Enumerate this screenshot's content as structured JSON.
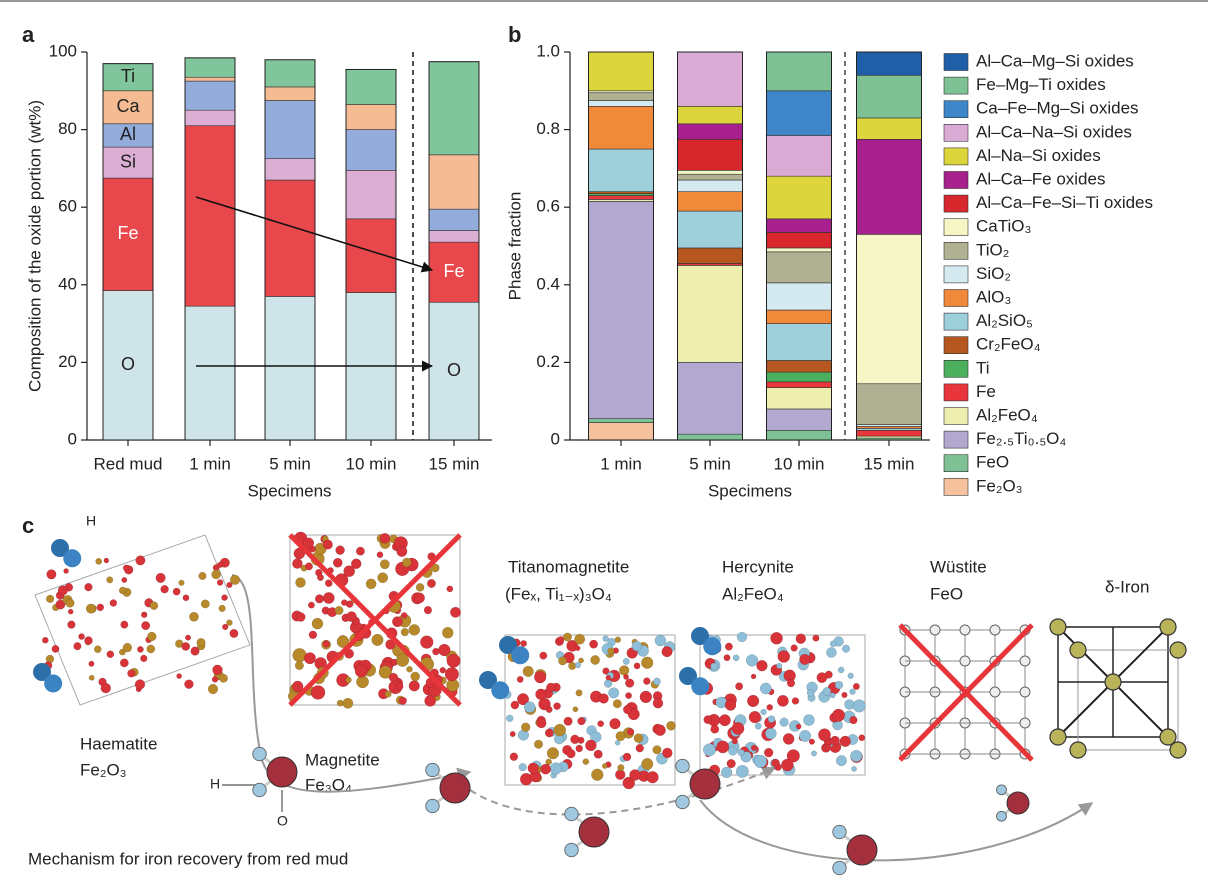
{
  "chart_data": [
    {
      "type": "stacked_bar",
      "panel_label": "a",
      "y_label": "Composition of the oxide portion (wt%)",
      "x_label": "Specimens",
      "categories": [
        "Red mud",
        "1 min",
        "5 min",
        "10 min",
        "15 min"
      ],
      "ylim": [
        0,
        100
      ],
      "yticks": [
        0,
        20,
        40,
        60,
        80,
        100
      ],
      "series": [
        {
          "name": "O",
          "color": "#cfe4e9",
          "values": [
            38.5,
            34.5,
            37,
            38,
            35.5
          ]
        },
        {
          "name": "Fe",
          "color": "#e8474c",
          "values": [
            29,
            46.5,
            30,
            19,
            15.5
          ]
        },
        {
          "name": "Si",
          "color": "#dcaed3",
          "values": [
            8,
            4,
            5.5,
            12.5,
            3
          ]
        },
        {
          "name": "Al",
          "color": "#93acdc",
          "values": [
            6,
            7.5,
            15,
            10.5,
            5.5
          ]
        },
        {
          "name": "Ca",
          "color": "#f5bb93",
          "values": [
            8.5,
            1,
            3.5,
            6.5,
            14
          ]
        },
        {
          "name": "Ti",
          "color": "#80c59b",
          "values": [
            7,
            5,
            7,
            9,
            24
          ]
        }
      ]
    },
    {
      "type": "stacked_bar",
      "panel_label": "b",
      "y_label": "Phase fraction",
      "x_label": "Specimens",
      "categories": [
        "1 min",
        "5 min",
        "10 min",
        "15 min"
      ],
      "ylim": [
        0,
        1
      ],
      "yticks": [
        0,
        0.2,
        0.4,
        0.6,
        0.8,
        {
          "value": 1,
          "label": "1.0"
        }
      ],
      "series": [
        {
          "name": "Fe₂O₃",
          "color": "#f6c29e",
          "values": [
            0.045,
            0,
            0,
            0
          ]
        },
        {
          "name": "FeO",
          "color": "#7dc195",
          "values": [
            0.01,
            0.015,
            0.025,
            0.005
          ]
        },
        {
          "name": "Fe₂.₅Ti₀.₅O₄",
          "color": "#b3a8d0",
          "values": [
            0.56,
            0.185,
            0.055,
            0
          ]
        },
        {
          "name": "Al₂FeO₄",
          "color": "#eeeeae",
          "values": [
            0.005,
            0.25,
            0.055,
            0.005
          ]
        },
        {
          "name": "Fe",
          "color": "#e8363c",
          "values": [
            0.01,
            0.005,
            0.015,
            0.015
          ]
        },
        {
          "name": "Ti",
          "color": "#4caf5e",
          "values": [
            0.005,
            0,
            0.025,
            0
          ]
        },
        {
          "name": "Cr₂FeO₄",
          "color": "#b5571e",
          "values": [
            0.005,
            0.04,
            0.03,
            0
          ]
        },
        {
          "name": "Al₂SiO₅",
          "color": "#9ed0dc",
          "values": [
            0.11,
            0.095,
            0.095,
            0.005
          ]
        },
        {
          "name": "AlO₃",
          "color": "#f08a3a",
          "values": [
            0.11,
            0.05,
            0.035,
            0.005
          ]
        },
        {
          "name": "SiO₂",
          "color": "#d5eaf0",
          "values": [
            0.015,
            0.03,
            0.07,
            0.005
          ]
        },
        {
          "name": "TiO₂",
          "color": "#b0b093",
          "values": [
            0.02,
            0.015,
            0.08,
            0.105
          ]
        },
        {
          "name": "CaTiO₃",
          "color": "#f5f5c6",
          "values": [
            0.005,
            0.01,
            0.01,
            0.385
          ]
        },
        {
          "name": "Al–Ca–Fe–Si–Ti oxides",
          "color": "#d7262c",
          "values": [
            0,
            0.08,
            0.04,
            0
          ]
        },
        {
          "name": "Al–Ca–Fe oxides",
          "color": "#a81f8e",
          "values": [
            0,
            0.04,
            0.035,
            0.245
          ]
        },
        {
          "name": "Al–Na–Si oxides",
          "color": "#dcd63c",
          "values": [
            0.1,
            0.045,
            0.11,
            0.055
          ]
        },
        {
          "name": "Al–Ca–Na–Si oxides",
          "color": "#d9abd4",
          "values": [
            0,
            0.14,
            0.105,
            0
          ]
        },
        {
          "name": "Ca–Fe–Mg–Si oxides",
          "color": "#3d86c8",
          "values": [
            0,
            0,
            0.115,
            0
          ]
        },
        {
          "name": "Fe–Mg–Ti oxides",
          "color": "#7dc195",
          "values": [
            0,
            0,
            0.1,
            0.11
          ]
        },
        {
          "name": "Al–Ca–Mg–Si oxides",
          "color": "#1f5fa8",
          "values": [
            0,
            0,
            0,
            0.06
          ]
        }
      ]
    }
  ],
  "diagram": {
    "panel_label": "c",
    "caption": "Mechanism for iron recovery from red mud",
    "atom_labels": [
      "H",
      "H",
      "O"
    ],
    "phases": [
      {
        "name": "Haematite",
        "formula": "Fe₂O₃"
      },
      {
        "name": "Magnetite",
        "formula": "Fe₃O₄"
      },
      {
        "name": "Titanomagnetite",
        "formula": "(Feₓ, Ti₁₋ₓ)₃O₄"
      },
      {
        "name": "Hercynite",
        "formula": "Al₂FeO₄"
      },
      {
        "name": "Wüstite",
        "formula": "FeO"
      },
      {
        "name": "δ-Iron"
      }
    ]
  }
}
